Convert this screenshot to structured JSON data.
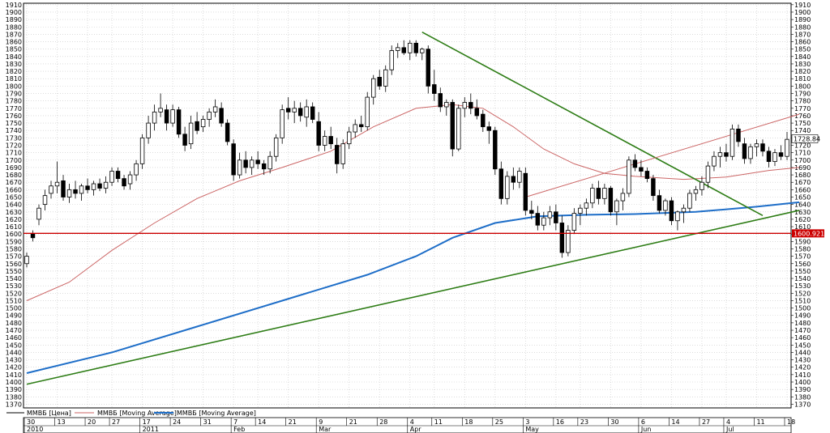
{
  "chart_data": {
    "type": "candlestick",
    "ylim": [
      1365,
      1912
    ],
    "y_ticks": [
      1370,
      1380,
      1390,
      1400,
      1410,
      1420,
      1430,
      1440,
      1450,
      1460,
      1470,
      1480,
      1490,
      1500,
      1510,
      1520,
      1530,
      1540,
      1550,
      1560,
      1570,
      1580,
      1590,
      1600,
      1610,
      1620,
      1630,
      1640,
      1650,
      1660,
      1670,
      1680,
      1690,
      1700,
      1710,
      1720,
      1730,
      1740,
      1750,
      1760,
      1770,
      1780,
      1790,
      1800,
      1810,
      1820,
      1830,
      1840,
      1850,
      1860,
      1870,
      1880,
      1890,
      1900,
      1910
    ],
    "grid": true,
    "x_day_ticks": [
      "30",
      "13",
      "20",
      "27",
      "17",
      "24",
      "31",
      "7",
      "14",
      "21",
      "9",
      "21",
      "28",
      "4",
      "11",
      "18",
      "25",
      "3",
      "16",
      "23",
      "30",
      "6",
      "14",
      "27",
      "4",
      "11",
      "18"
    ],
    "x_month_labels": [
      "2010",
      "2011",
      "Feb",
      "Mar",
      "Apr",
      "May",
      "Jun",
      "Jul"
    ],
    "ohlc": [
      [
        1560,
        1575,
        1555,
        1570
      ],
      [
        1600,
        1605,
        1590,
        1595
      ],
      [
        1620,
        1640,
        1612,
        1635
      ],
      [
        1640,
        1660,
        1632,
        1652
      ],
      [
        1655,
        1672,
        1648,
        1665
      ],
      [
        1665,
        1698,
        1655,
        1670
      ],
      [
        1672,
        1680,
        1645,
        1650
      ],
      [
        1650,
        1668,
        1642,
        1660
      ],
      [
        1660,
        1672,
        1648,
        1655
      ],
      [
        1655,
        1668,
        1645,
        1665
      ],
      [
        1665,
        1675,
        1655,
        1660
      ],
      [
        1660,
        1672,
        1652,
        1668
      ],
      [
        1668,
        1675,
        1658,
        1662
      ],
      [
        1662,
        1678,
        1655,
        1670
      ],
      [
        1670,
        1690,
        1665,
        1685
      ],
      [
        1685,
        1690,
        1670,
        1675
      ],
      [
        1675,
        1680,
        1660,
        1665
      ],
      [
        1668,
        1685,
        1660,
        1680
      ],
      [
        1680,
        1700,
        1672,
        1695
      ],
      [
        1695,
        1735,
        1688,
        1730
      ],
      [
        1730,
        1760,
        1722,
        1750
      ],
      [
        1750,
        1775,
        1740,
        1765
      ],
      [
        1765,
        1790,
        1758,
        1770
      ],
      [
        1768,
        1775,
        1740,
        1750
      ],
      [
        1750,
        1775,
        1745,
        1768
      ],
      [
        1768,
        1772,
        1730,
        1735
      ],
      [
        1735,
        1745,
        1712,
        1720
      ],
      [
        1722,
        1760,
        1715,
        1750
      ],
      [
        1752,
        1765,
        1735,
        1740
      ],
      [
        1745,
        1760,
        1738,
        1755
      ],
      [
        1755,
        1770,
        1745,
        1765
      ],
      [
        1765,
        1782,
        1758,
        1772
      ],
      [
        1770,
        1778,
        1745,
        1750
      ],
      [
        1750,
        1755,
        1720,
        1725
      ],
      [
        1722,
        1728,
        1672,
        1680
      ],
      [
        1680,
        1710,
        1675,
        1700
      ],
      [
        1700,
        1712,
        1682,
        1690
      ],
      [
        1690,
        1705,
        1680,
        1700
      ],
      [
        1700,
        1712,
        1688,
        1695
      ],
      [
        1695,
        1700,
        1680,
        1688
      ],
      [
        1688,
        1712,
        1682,
        1705
      ],
      [
        1705,
        1735,
        1698,
        1730
      ],
      [
        1730,
        1775,
        1722,
        1768
      ],
      [
        1770,
        1785,
        1755,
        1765
      ],
      [
        1765,
        1780,
        1750,
        1770
      ],
      [
        1770,
        1778,
        1752,
        1760
      ],
      [
        1758,
        1782,
        1745,
        1772
      ],
      [
        1772,
        1778,
        1750,
        1755
      ],
      [
        1752,
        1765,
        1712,
        1720
      ],
      [
        1720,
        1740,
        1712,
        1732
      ],
      [
        1732,
        1745,
        1715,
        1722
      ],
      [
        1720,
        1730,
        1682,
        1695
      ],
      [
        1695,
        1728,
        1688,
        1722
      ],
      [
        1722,
        1745,
        1715,
        1738
      ],
      [
        1738,
        1755,
        1730,
        1748
      ],
      [
        1748,
        1760,
        1738,
        1745
      ],
      [
        1745,
        1792,
        1740,
        1785
      ],
      [
        1785,
        1815,
        1775,
        1810
      ],
      [
        1812,
        1822,
        1795,
        1800
      ],
      [
        1800,
        1828,
        1792,
        1822
      ],
      [
        1822,
        1855,
        1815,
        1848
      ],
      [
        1848,
        1858,
        1838,
        1852
      ],
      [
        1852,
        1862,
        1842,
        1845
      ],
      [
        1845,
        1862,
        1835,
        1858
      ],
      [
        1858,
        1862,
        1840,
        1845
      ],
      [
        1845,
        1852,
        1835,
        1850
      ],
      [
        1850,
        1855,
        1790,
        1800
      ],
      [
        1802,
        1822,
        1780,
        1790
      ],
      [
        1790,
        1798,
        1765,
        1772
      ],
      [
        1772,
        1782,
        1760,
        1778
      ],
      [
        1778,
        1782,
        1705,
        1715
      ],
      [
        1715,
        1775,
        1712,
        1770
      ],
      [
        1770,
        1785,
        1758,
        1778
      ],
      [
        1778,
        1790,
        1762,
        1770
      ],
      [
        1770,
        1782,
        1755,
        1760
      ],
      [
        1762,
        1768,
        1738,
        1745
      ],
      [
        1745,
        1752,
        1722,
        1740
      ],
      [
        1740,
        1745,
        1680,
        1688
      ],
      [
        1688,
        1698,
        1640,
        1648
      ],
      [
        1648,
        1685,
        1640,
        1678
      ],
      [
        1678,
        1690,
        1660,
        1670
      ],
      [
        1670,
        1690,
        1662,
        1685
      ],
      [
        1682,
        1690,
        1625,
        1632
      ],
      [
        1632,
        1645,
        1620,
        1628
      ],
      [
        1628,
        1638,
        1605,
        1612
      ],
      [
        1612,
        1630,
        1605,
        1622
      ],
      [
        1622,
        1638,
        1612,
        1630
      ],
      [
        1630,
        1640,
        1605,
        1615
      ],
      [
        1615,
        1625,
        1568,
        1575
      ],
      [
        1575,
        1612,
        1570,
        1605
      ],
      [
        1605,
        1635,
        1600,
        1628
      ],
      [
        1628,
        1640,
        1612,
        1635
      ],
      [
        1635,
        1648,
        1625,
        1642
      ],
      [
        1642,
        1668,
        1635,
        1662
      ],
      [
        1662,
        1672,
        1640,
        1648
      ],
      [
        1648,
        1668,
        1640,
        1662
      ],
      [
        1662,
        1665,
        1625,
        1630
      ],
      [
        1630,
        1648,
        1612,
        1645
      ],
      [
        1645,
        1662,
        1632,
        1655
      ],
      [
        1655,
        1705,
        1650,
        1700
      ],
      [
        1700,
        1708,
        1685,
        1690
      ],
      [
        1690,
        1700,
        1678,
        1685
      ],
      [
        1685,
        1690,
        1670,
        1675
      ],
      [
        1675,
        1680,
        1645,
        1652
      ],
      [
        1652,
        1660,
        1628,
        1632
      ],
      [
        1632,
        1648,
        1625,
        1645
      ],
      [
        1645,
        1650,
        1612,
        1618
      ],
      [
        1618,
        1632,
        1605,
        1630
      ],
      [
        1630,
        1640,
        1615,
        1635
      ],
      [
        1635,
        1660,
        1630,
        1655
      ],
      [
        1655,
        1665,
        1645,
        1660
      ],
      [
        1660,
        1678,
        1652,
        1670
      ],
      [
        1670,
        1698,
        1662,
        1692
      ],
      [
        1692,
        1712,
        1685,
        1705
      ],
      [
        1705,
        1718,
        1690,
        1710
      ],
      [
        1710,
        1722,
        1698,
        1705
      ],
      [
        1705,
        1748,
        1700,
        1742
      ],
      [
        1742,
        1748,
        1718,
        1725
      ],
      [
        1722,
        1730,
        1695,
        1702
      ],
      [
        1702,
        1722,
        1695,
        1718
      ],
      [
        1718,
        1728,
        1705,
        1722
      ],
      [
        1722,
        1728,
        1705,
        1712
      ],
      [
        1712,
        1718,
        1690,
        1698
      ],
      [
        1698,
        1715,
        1692,
        1710
      ],
      [
        1710,
        1720,
        1700,
        1705
      ],
      [
        1705,
        1738,
        1700,
        1728
      ]
    ],
    "series": [
      {
        "name": "ММВБ [Цена]",
        "color": "#000000"
      },
      {
        "name": "ММВБ [Moving Average]",
        "color": "#cc6666"
      },
      {
        "name": "ММВБ [Moving Average]",
        "color": "#1e6ec8"
      }
    ],
    "ma_short": [
      [
        0,
        1510
      ],
      [
        7,
        1535
      ],
      [
        14,
        1578
      ],
      [
        21,
        1615
      ],
      [
        28,
        1648
      ],
      [
        35,
        1672
      ],
      [
        42,
        1690
      ],
      [
        50,
        1712
      ],
      [
        57,
        1745
      ],
      [
        64,
        1770
      ],
      [
        70,
        1775
      ],
      [
        75,
        1770
      ],
      [
        80,
        1745
      ],
      [
        85,
        1715
      ],
      [
        90,
        1695
      ],
      [
        95,
        1682
      ],
      [
        100,
        1678
      ],
      [
        108,
        1674
      ],
      [
        115,
        1677
      ],
      [
        122,
        1686
      ],
      [
        127,
        1690
      ]
    ],
    "ma_long": [
      [
        0,
        1412
      ],
      [
        14,
        1440
      ],
      [
        28,
        1475
      ],
      [
        42,
        1510
      ],
      [
        56,
        1545
      ],
      [
        64,
        1570
      ],
      [
        70,
        1595
      ],
      [
        77,
        1615
      ],
      [
        84,
        1624
      ],
      [
        92,
        1626
      ],
      [
        100,
        1627
      ],
      [
        110,
        1630
      ],
      [
        120,
        1637
      ],
      [
        127,
        1643
      ]
    ],
    "trendlines": [
      {
        "name": "support",
        "color": "#2e7d16",
        "from": [
          0,
          1397
        ],
        "to": [
          127,
          1632
        ]
      },
      {
        "name": "resistance",
        "color": "#2e7d16",
        "from": [
          65,
          1873
        ],
        "to": [
          121,
          1625
        ]
      },
      {
        "name": "upper-channel",
        "color": "#cc6666",
        "from": [
          82,
          1650
        ],
        "to": [
          127,
          1762
        ]
      }
    ],
    "hline": {
      "value": 1600.92,
      "color": "#cc0000"
    },
    "last_price": {
      "value": 1728.84,
      "label": "1728.84"
    },
    "level_label": "1600.92125"
  }
}
